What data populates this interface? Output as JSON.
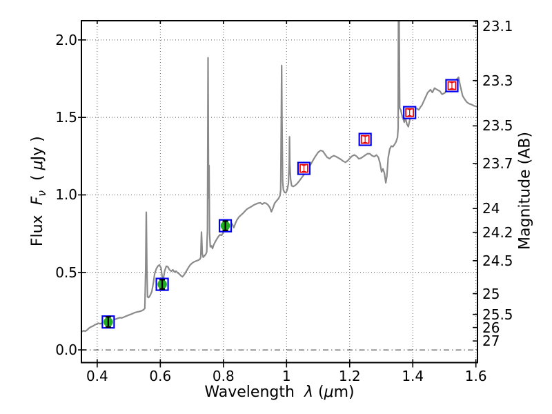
{
  "labels": {
    "xlabel_word": "Wavelength",
    "xlabel_lambda": "λ",
    "xlabel_open": "(",
    "xlabel_mu": "μ",
    "xlabel_close": "m)",
    "ylabel_word": "Flux",
    "ylabel_F": "F",
    "ylabel_nu": "ν",
    "ylabel_open": "(",
    "ylabel_mu": "μ",
    "ylabel_close": "Jy )",
    "right_label": "Magnitude (AB)"
  },
  "chart_data": {
    "type": "line",
    "title": "",
    "xlabel": "Wavelength λ (μm)",
    "ylabel_left": "Flux Fν ( μJy )",
    "ylabel_right": "Magnitude (AB)",
    "xlim": [
      0.35,
      1.605
    ],
    "ylim": [
      -0.082,
      2.124
    ],
    "ab_zeropoint": 23.9,
    "grid": "dotted",
    "legend": "none",
    "colors": {
      "spectrum": "#8a8a8a",
      "outer_square": "#0000ee",
      "inner_square": "#ee0000",
      "detection_fill": "#22aa22",
      "detection_errbar": "#000000",
      "prediction_errbar": "#ee0000",
      "grid": "#555555",
      "zero_line": "#333333",
      "frame": "#000000"
    },
    "x_ticks": [
      {
        "value": 0.4,
        "label": "0.4"
      },
      {
        "value": 0.6,
        "label": "0.6"
      },
      {
        "value": 0.8,
        "label": "0.8"
      },
      {
        "value": 1.0,
        "label": "1"
      },
      {
        "value": 1.2,
        "label": "1.2"
      },
      {
        "value": 1.4,
        "label": "1.4"
      },
      {
        "value": 1.6,
        "label": "1.6"
      }
    ],
    "y_ticks_flux": [
      {
        "value": 0.0,
        "label": "0.0",
        "grid": false
      },
      {
        "value": 0.5,
        "label": "0.5",
        "grid": true
      },
      {
        "value": 1.0,
        "label": "1.0",
        "grid": true
      },
      {
        "value": 1.5,
        "label": "1.5",
        "grid": true
      },
      {
        "value": 2.0,
        "label": "2.0",
        "grid": true
      }
    ],
    "y_ticks_mag": [
      {
        "mag": 23.1,
        "label": "23.1"
      },
      {
        "mag": 23.3,
        "label": "23.3"
      },
      {
        "mag": 23.5,
        "label": "23.5"
      },
      {
        "mag": 23.7,
        "label": "23.7"
      },
      {
        "mag": 24.0,
        "label": "24"
      },
      {
        "mag": 24.2,
        "label": "24.2"
      },
      {
        "mag": 24.5,
        "label": "24.5"
      },
      {
        "mag": 25.0,
        "label": "25"
      },
      {
        "mag": 25.5,
        "label": "25.5"
      },
      {
        "mag": 26.0,
        "label": "26"
      },
      {
        "mag": 27.0,
        "label": "27"
      }
    ],
    "zero_line": {
      "y": 0.0,
      "style": "dashdot"
    },
    "series": [
      {
        "name": "model-spectrum",
        "type": "line",
        "points": [
          [
            0.352,
            0.118
          ],
          [
            0.357,
            0.124
          ],
          [
            0.362,
            0.12
          ],
          [
            0.368,
            0.128
          ],
          [
            0.374,
            0.14
          ],
          [
            0.38,
            0.148
          ],
          [
            0.386,
            0.153
          ],
          [
            0.392,
            0.161
          ],
          [
            0.398,
            0.167
          ],
          [
            0.404,
            0.172
          ],
          [
            0.41,
            0.168
          ],
          [
            0.417,
            0.175
          ],
          [
            0.424,
            0.181
          ],
          [
            0.431,
            0.187
          ],
          [
            0.438,
            0.191
          ],
          [
            0.444,
            0.193
          ],
          [
            0.45,
            0.189
          ],
          [
            0.457,
            0.197
          ],
          [
            0.464,
            0.203
          ],
          [
            0.471,
            0.208
          ],
          [
            0.478,
            0.206
          ],
          [
            0.485,
            0.212
          ],
          [
            0.492,
            0.218
          ],
          [
            0.499,
            0.224
          ],
          [
            0.506,
            0.229
          ],
          [
            0.513,
            0.235
          ],
          [
            0.52,
            0.241
          ],
          [
            0.527,
            0.245
          ],
          [
            0.534,
            0.248
          ],
          [
            0.541,
            0.253
          ],
          [
            0.547,
            0.259
          ],
          [
            0.551,
            0.268
          ],
          [
            0.5535,
            0.52
          ],
          [
            0.5555,
            0.888
          ],
          [
            0.5575,
            0.52
          ],
          [
            0.5595,
            0.342
          ],
          [
            0.563,
            0.338
          ],
          [
            0.568,
            0.352
          ],
          [
            0.573,
            0.376
          ],
          [
            0.578,
            0.432
          ],
          [
            0.582,
            0.49
          ],
          [
            0.587,
            0.522
          ],
          [
            0.592,
            0.54
          ],
          [
            0.597,
            0.548
          ],
          [
            0.602,
            0.53
          ],
          [
            0.606,
            0.47
          ],
          [
            0.61,
            0.462
          ],
          [
            0.614,
            0.51
          ],
          [
            0.619,
            0.54
          ],
          [
            0.624,
            0.536
          ],
          [
            0.629,
            0.517
          ],
          [
            0.635,
            0.508
          ],
          [
            0.64,
            0.517
          ],
          [
            0.645,
            0.502
          ],
          [
            0.65,
            0.508
          ],
          [
            0.655,
            0.498
          ],
          [
            0.66,
            0.49
          ],
          [
            0.665,
            0.479
          ],
          [
            0.67,
            0.472
          ],
          [
            0.675,
            0.483
          ],
          [
            0.68,
            0.5
          ],
          [
            0.685,
            0.517
          ],
          [
            0.69,
            0.534
          ],
          [
            0.695,
            0.549
          ],
          [
            0.701,
            0.56
          ],
          [
            0.707,
            0.568
          ],
          [
            0.713,
            0.573
          ],
          [
            0.719,
            0.578
          ],
          [
            0.725,
            0.584
          ],
          [
            0.728,
            0.597
          ],
          [
            0.7305,
            0.76
          ],
          [
            0.733,
            0.62
          ],
          [
            0.736,
            0.598
          ],
          [
            0.74,
            0.607
          ],
          [
            0.744,
            0.617
          ],
          [
            0.747,
            0.632
          ],
          [
            0.7495,
            0.78
          ],
          [
            0.7513,
            1.885
          ],
          [
            0.753,
            0.98
          ],
          [
            0.7545,
            1.19
          ],
          [
            0.756,
            0.75
          ],
          [
            0.7585,
            0.665
          ],
          [
            0.762,
            0.672
          ],
          [
            0.7655,
            0.654
          ],
          [
            0.769,
            0.676
          ],
          [
            0.774,
            0.697
          ],
          [
            0.779,
            0.715
          ],
          [
            0.784,
            0.731
          ],
          [
            0.789,
            0.743
          ],
          [
            0.794,
            0.739
          ],
          [
            0.799,
            0.756
          ],
          [
            0.804,
            0.773
          ],
          [
            0.809,
            0.789
          ],
          [
            0.815,
            0.804
          ],
          [
            0.82,
            0.816
          ],
          [
            0.825,
            0.819
          ],
          [
            0.829,
            0.807
          ],
          [
            0.833,
            0.789
          ],
          [
            0.838,
            0.817
          ],
          [
            0.843,
            0.839
          ],
          [
            0.849,
            0.857
          ],
          [
            0.855,
            0.869
          ],
          [
            0.861,
            0.879
          ],
          [
            0.868,
            0.895
          ],
          [
            0.875,
            0.909
          ],
          [
            0.882,
            0.917
          ],
          [
            0.889,
            0.925
          ],
          [
            0.896,
            0.935
          ],
          [
            0.903,
            0.941
          ],
          [
            0.91,
            0.947
          ],
          [
            0.917,
            0.949
          ],
          [
            0.923,
            0.94
          ],
          [
            0.929,
            0.948
          ],
          [
            0.935,
            0.946
          ],
          [
            0.941,
            0.936
          ],
          [
            0.947,
            0.919
          ],
          [
            0.952,
            0.891
          ],
          [
            0.957,
            0.915
          ],
          [
            0.962,
            0.945
          ],
          [
            0.968,
            0.961
          ],
          [
            0.974,
            0.975
          ],
          [
            0.979,
            0.994
          ],
          [
            0.9815,
            1.03
          ],
          [
            0.9835,
            1.5
          ],
          [
            0.9845,
            1.835
          ],
          [
            0.9855,
            1.5
          ],
          [
            0.9875,
            1.09
          ],
          [
            0.99,
            1.032
          ],
          [
            0.994,
            1.016
          ],
          [
            0.998,
            1.013
          ],
          [
            1.002,
            1.033
          ],
          [
            1.006,
            1.072
          ],
          [
            1.0085,
            1.2
          ],
          [
            1.0095,
            1.375
          ],
          [
            1.0105,
            1.2
          ],
          [
            1.013,
            1.1
          ],
          [
            1.016,
            1.06
          ],
          [
            1.021,
            1.054
          ],
          [
            1.027,
            1.061
          ],
          [
            1.033,
            1.072
          ],
          [
            1.04,
            1.089
          ],
          [
            1.047,
            1.109
          ],
          [
            1.054,
            1.127
          ],
          [
            1.061,
            1.147
          ],
          [
            1.068,
            1.169
          ],
          [
            1.076,
            1.195
          ],
          [
            1.084,
            1.224
          ],
          [
            1.092,
            1.251
          ],
          [
            1.1,
            1.274
          ],
          [
            1.108,
            1.287
          ],
          [
            1.115,
            1.282
          ],
          [
            1.122,
            1.261
          ],
          [
            1.129,
            1.242
          ],
          [
            1.136,
            1.234
          ],
          [
            1.143,
            1.246
          ],
          [
            1.15,
            1.253
          ],
          [
            1.157,
            1.247
          ],
          [
            1.164,
            1.239
          ],
          [
            1.172,
            1.229
          ],
          [
            1.18,
            1.217
          ],
          [
            1.187,
            1.21
          ],
          [
            1.194,
            1.221
          ],
          [
            1.201,
            1.237
          ],
          [
            1.208,
            1.251
          ],
          [
            1.215,
            1.258
          ],
          [
            1.222,
            1.249
          ],
          [
            1.229,
            1.233
          ],
          [
            1.236,
            1.237
          ],
          [
            1.243,
            1.247
          ],
          [
            1.25,
            1.257
          ],
          [
            1.257,
            1.266
          ],
          [
            1.264,
            1.265
          ],
          [
            1.271,
            1.253
          ],
          [
            1.278,
            1.247
          ],
          [
            1.285,
            1.257
          ],
          [
            1.291,
            1.242
          ],
          [
            1.296,
            1.206
          ],
          [
            1.301,
            1.148
          ],
          [
            1.3055,
            1.168
          ],
          [
            1.31,
            1.14
          ],
          [
            1.3145,
            1.078
          ],
          [
            1.318,
            1.12
          ],
          [
            1.322,
            1.24
          ],
          [
            1.327,
            1.297
          ],
          [
            1.332,
            1.315
          ],
          [
            1.337,
            1.311
          ],
          [
            1.342,
            1.325
          ],
          [
            1.347,
            1.342
          ],
          [
            1.3515,
            1.372
          ],
          [
            1.3535,
            1.43
          ],
          [
            1.3548,
            2.4
          ],
          [
            1.356,
            2.4
          ],
          [
            1.3585,
            1.56
          ],
          [
            1.362,
            1.548
          ],
          [
            1.365,
            1.52
          ],
          [
            1.368,
            1.5
          ],
          [
            1.373,
            1.469
          ],
          [
            1.377,
            1.498
          ],
          [
            1.381,
            1.459
          ],
          [
            1.386,
            1.44
          ],
          [
            1.392,
            1.499
          ],
          [
            1.4,
            1.529
          ],
          [
            1.406,
            1.549
          ],
          [
            1.412,
            1.559
          ],
          [
            1.419,
            1.549
          ],
          [
            1.425,
            1.569
          ],
          [
            1.429,
            1.579
          ],
          [
            1.438,
            1.619
          ],
          [
            1.447,
            1.659
          ],
          [
            1.456,
            1.679
          ],
          [
            1.462,
            1.661
          ],
          [
            1.469,
            1.689
          ],
          [
            1.477,
            1.679
          ],
          [
            1.486,
            1.669
          ],
          [
            1.493,
            1.649
          ],
          [
            1.502,
            1.659
          ],
          [
            1.508,
            1.679
          ],
          [
            1.517,
            1.699
          ],
          [
            1.525,
            1.719
          ],
          [
            1.534,
            1.739
          ],
          [
            1.541,
            1.749
          ],
          [
            1.545,
            1.759
          ],
          [
            1.551,
            1.699
          ],
          [
            1.558,
            1.639
          ],
          [
            1.564,
            1.619
          ],
          [
            1.571,
            1.599
          ],
          [
            1.578,
            1.589
          ],
          [
            1.586,
            1.583
          ],
          [
            1.595,
            1.574
          ],
          [
            1.604,
            1.569
          ]
        ]
      },
      {
        "name": "observed-photometry",
        "type": "scatter",
        "marker": "green-circle-in-blue-square-with-black-errorbar",
        "points": [
          {
            "x": 0.435,
            "y": 0.18,
            "yerr": 0.033
          },
          {
            "x": 0.606,
            "y": 0.423,
            "yerr": 0.03
          },
          {
            "x": 0.806,
            "y": 0.801,
            "yerr": 0.03
          }
        ]
      },
      {
        "name": "predicted-photometry",
        "type": "scatter",
        "marker": "open-red-square-in-blue-square-with-red-errorbar",
        "points": [
          {
            "x": 1.055,
            "y": 1.171,
            "yerr": 0.02
          },
          {
            "x": 1.249,
            "y": 1.358,
            "yerr": 0.02
          },
          {
            "x": 1.39,
            "y": 1.531,
            "yerr": 0.02
          },
          {
            "x": 1.524,
            "y": 1.705,
            "yerr": 0.02
          }
        ]
      }
    ]
  }
}
